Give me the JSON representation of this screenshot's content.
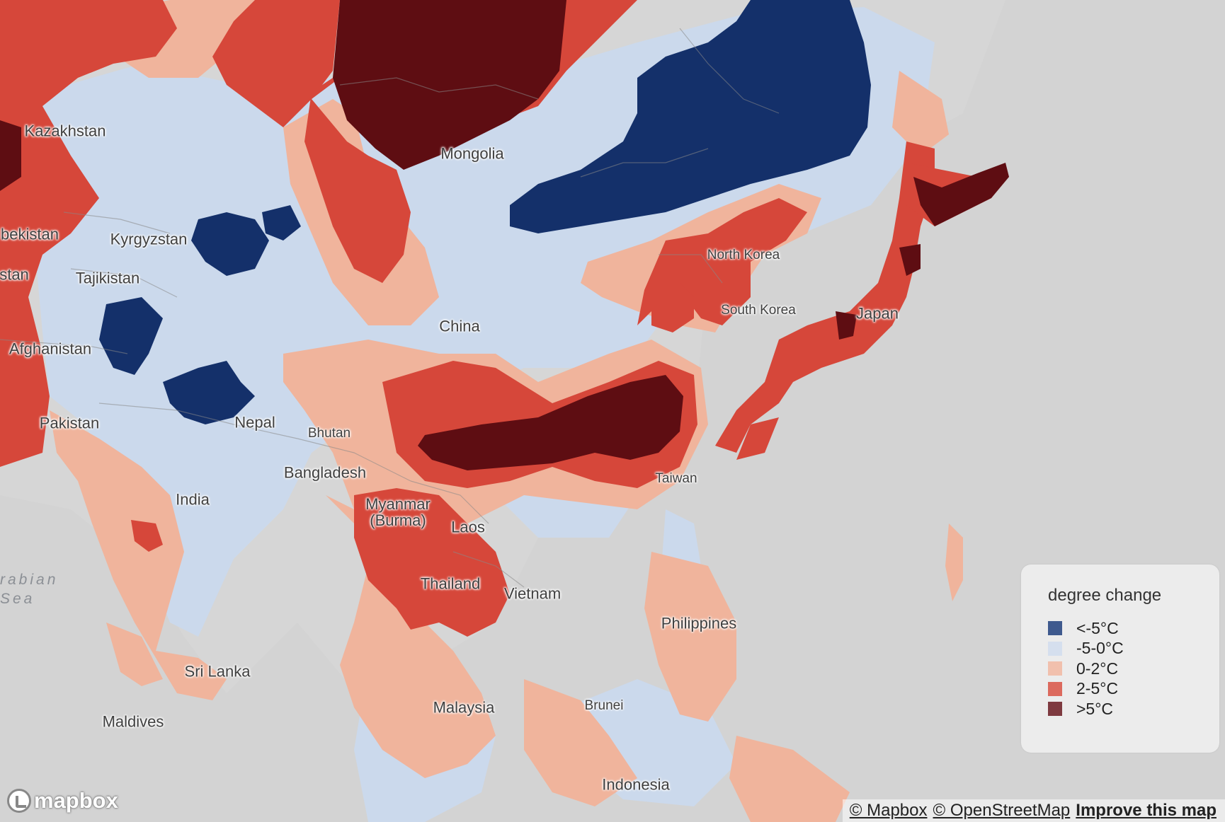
{
  "colors": {
    "land": "#d6d6d6",
    "ocean": "#d3d3d3",
    "band_lt_m5": "#14306a",
    "band_m5_0": "#cbd9ec",
    "band_0_2": "#f0b49c",
    "band_2_5": "#d6473a",
    "band_gt5": "#5e0d12",
    "legend_gt_m5": "#3f5a8e",
    "legend_m5_0": "#d5dfee",
    "legend_0_2": "#f1c0ad",
    "legend_2_5": "#dc6a5e",
    "legend_gt5": "#7e3a40"
  },
  "water_labels": [
    {
      "text": "rabian\nSea"
    }
  ],
  "country_labels": [
    {
      "name": "Kazakhstan"
    },
    {
      "name": "Mongolia"
    },
    {
      "name": "bekistan"
    },
    {
      "name": "Kyrgyzstan"
    },
    {
      "name": "stan"
    },
    {
      "name": "Tajikistan"
    },
    {
      "name": "Afghanistan"
    },
    {
      "name": "China"
    },
    {
      "name": "North Korea"
    },
    {
      "name": "South Korea"
    },
    {
      "name": "Japan"
    },
    {
      "name": "Pakistan"
    },
    {
      "name": "Nepal"
    },
    {
      "name": "Bhutan"
    },
    {
      "name": "Bangladesh"
    },
    {
      "name": "India"
    },
    {
      "name": "Myanmar\n(Burma)"
    },
    {
      "name": "Laos"
    },
    {
      "name": "Taiwan"
    },
    {
      "name": "Thailand"
    },
    {
      "name": "Vietnam"
    },
    {
      "name": "Philippines"
    },
    {
      "name": "Sri Lanka"
    },
    {
      "name": "Maldives"
    },
    {
      "name": "Malaysia"
    },
    {
      "name": "Brunei"
    },
    {
      "name": "Indonesia"
    }
  ],
  "legend": {
    "title": "degree change",
    "items": [
      {
        "label": "<-5°C",
        "color": "#3f5a8e"
      },
      {
        "label": "-5-0°C",
        "color": "#d5dfee"
      },
      {
        "label": "0-2°C",
        "color": "#f1c0ad"
      },
      {
        "label": "2-5°C",
        "color": "#dc6a5e"
      },
      {
        "label": ">5°C",
        "color": "#7e3a40"
      }
    ]
  },
  "attribution": {
    "mapbox": "© Mapbox",
    "osm": "© OpenStreetMap",
    "improve": "Improve this map"
  },
  "logo": {
    "text": "mapbox",
    "icon": "mapbox-logo-icon"
  }
}
